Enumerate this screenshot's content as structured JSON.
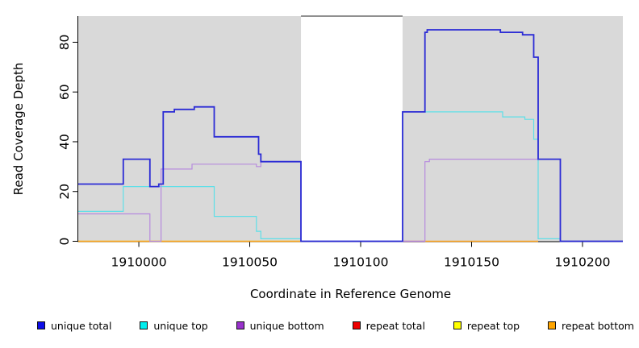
{
  "chart_data": {
    "type": "line",
    "style": "step-after",
    "title": "",
    "xlabel": "Coordinate in Reference Genome",
    "ylabel": "Read Coverage Depth",
    "xlim": [
      1909972.7,
      1910218.2
    ],
    "ylim": [
      0,
      90.5
    ],
    "grid": false,
    "x_ticks": [
      1910000,
      1910050,
      1910100,
      1910150,
      1910200
    ],
    "y_ticks": [
      0,
      20,
      40,
      60,
      80
    ],
    "plot_bg": "#ffffff",
    "shaded_region_color": "#d9d9d9",
    "background_regions": [
      {
        "x1": 1909972.7,
        "x2": 1910073.1
      },
      {
        "x1": 1910118.9,
        "x2": 1910218.2
      }
    ],
    "top_border_segment": {
      "x1": 1910073.1,
      "x2": 1910118.9,
      "color": "#4d4d4d"
    },
    "axis_color": "#000000",
    "draw_order": [
      4,
      3,
      5,
      1,
      2,
      0
    ],
    "series": [
      {
        "name": "unique total",
        "color": "#2b2bd5",
        "legend_color": "#0d0de8",
        "lw": 1.8,
        "steps": [
          [
            1909972.7,
            23
          ],
          [
            1909993,
            33
          ],
          [
            1910005,
            22
          ],
          [
            1910009,
            23
          ],
          [
            1910011,
            52
          ],
          [
            1910016,
            53
          ],
          [
            1910025,
            54
          ],
          [
            1910034,
            42
          ],
          [
            1910054,
            35
          ],
          [
            1910055,
            32
          ],
          [
            1910073.1,
            0
          ],
          [
            1910118.9,
            52
          ],
          [
            1910129,
            84
          ],
          [
            1910130,
            85
          ],
          [
            1910163,
            84
          ],
          [
            1910173,
            83
          ],
          [
            1910178,
            74
          ],
          [
            1910180,
            33
          ],
          [
            1910190,
            0
          ],
          [
            1910218.2,
            0
          ]
        ]
      },
      {
        "name": "unique top",
        "color": "#5edfe8",
        "legend_color": "#00eeee",
        "lw": 1.2,
        "steps": [
          [
            1909972.7,
            12
          ],
          [
            1909993,
            22
          ],
          [
            1910034,
            10
          ],
          [
            1910053,
            4
          ],
          [
            1910055,
            1
          ],
          [
            1910073.1,
            0
          ],
          [
            1910118.9,
            52
          ],
          [
            1910164,
            50
          ],
          [
            1910174,
            49
          ],
          [
            1910178,
            41
          ],
          [
            1910180,
            1
          ],
          [
            1910190,
            0
          ],
          [
            1910218.2,
            0
          ]
        ]
      },
      {
        "name": "unique bottom",
        "color": "#b78ade",
        "legend_color": "#9932cc",
        "lw": 1.2,
        "steps": [
          [
            1909972.7,
            11
          ],
          [
            1910005,
            0
          ],
          [
            1910010,
            29
          ],
          [
            1910024,
            31
          ],
          [
            1910053,
            30
          ],
          [
            1910055,
            32
          ],
          [
            1910073.1,
            0
          ],
          [
            1910129,
            32
          ],
          [
            1910131,
            33
          ],
          [
            1910190,
            0
          ],
          [
            1910218.2,
            0
          ]
        ]
      },
      {
        "name": "repeat total",
        "color": "#e02020",
        "legend_color": "#ee0000",
        "lw": 1.3,
        "steps": [
          [
            1910118.9,
            0
          ],
          [
            1910129,
            0
          ]
        ]
      },
      {
        "name": "repeat top",
        "color": "#ffff00",
        "legend_color": "#ffff00",
        "lw": 1.2,
        "steps": [
          [
            1909972.7,
            0
          ],
          [
            1910073.1,
            0
          ]
        ]
      },
      {
        "name": "repeat bottom",
        "color": "#ffa51e",
        "legend_color": "#ffa500",
        "lw": 1.5,
        "steps": [
          [
            1909972.7,
            0
          ],
          [
            1910073.1,
            0
          ],
          null,
          [
            1910129,
            0
          ],
          [
            1910180,
            0
          ]
        ]
      }
    ]
  },
  "legend": {
    "items": [
      {
        "label": "unique total",
        "color": "#0d0de8"
      },
      {
        "label": "unique top",
        "color": "#00eeee"
      },
      {
        "label": "unique bottom",
        "color": "#9932cc"
      },
      {
        "label": "repeat total",
        "color": "#ee0000"
      },
      {
        "label": "repeat top",
        "color": "#ffff00"
      },
      {
        "label": "repeat bottom",
        "color": "#ffa500"
      }
    ]
  }
}
